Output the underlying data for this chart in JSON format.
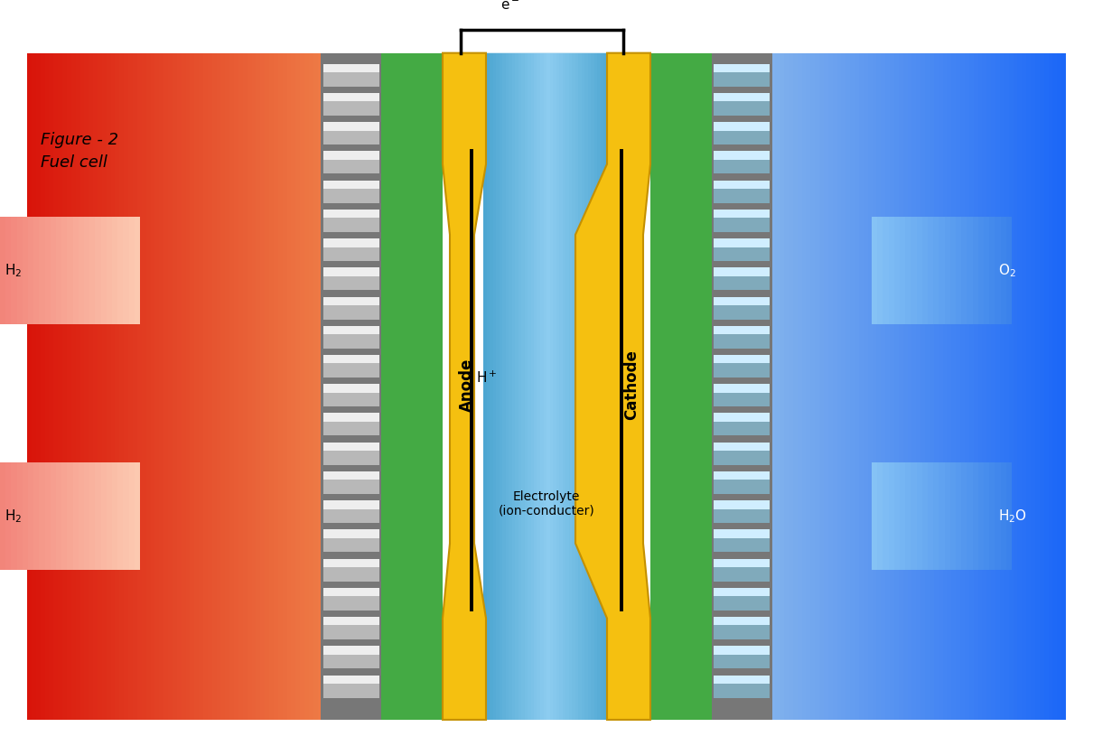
{
  "title": "Figure - 2\nFuel cell",
  "bg_color": "#ffffff",
  "fig_width": 12.1,
  "fig_height": 8.36,
  "anode_color": "#f5c010",
  "cathode_color": "#f5c010",
  "electrolyte_color": "#7ec8e8",
  "green_layer_color": "#44aa44",
  "gray_layer_color": "#777777",
  "anode_label": "Anode",
  "cathode_label": "Cathode",
  "electrolyte_label": "Electrolyte\n(ion-conducter)"
}
